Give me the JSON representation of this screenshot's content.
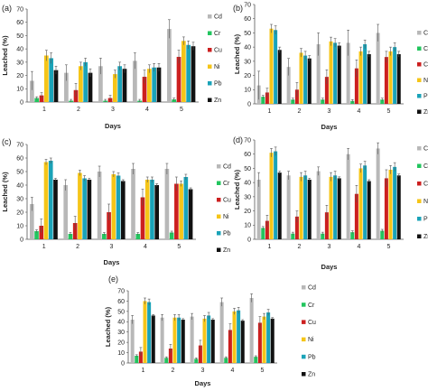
{
  "chart_data": [
    {
      "panel": "(a)",
      "type": "bar",
      "categories": [
        "1",
        "2",
        "3",
        "4",
        "5"
      ],
      "xlabel": "Days",
      "ylabel": "Leached (%)",
      "ylim": [
        0,
        70
      ],
      "yticks": [
        0,
        10,
        20,
        30,
        40,
        50,
        60,
        70
      ],
      "legend_position": "right",
      "series": [
        {
          "name": "Cd",
          "color": "#b8b8b8",
          "values": [
            16,
            22,
            27,
            31,
            55
          ],
          "errors": [
            7,
            6,
            6,
            6,
            7
          ]
        },
        {
          "name": "Cr",
          "color": "#22c55e",
          "values": [
            3,
            1,
            1,
            1,
            2
          ],
          "errors": [
            1,
            1,
            1,
            1,
            1
          ]
        },
        {
          "name": "Cu",
          "color": "#cc1f1f",
          "values": [
            5,
            9,
            3,
            19,
            34
          ],
          "errors": [
            2,
            5,
            2,
            5,
            5
          ]
        },
        {
          "name": "Ni",
          "color": "#f5c518",
          "values": [
            35,
            27,
            21,
            25,
            46
          ],
          "errors": [
            4,
            3,
            3,
            3,
            3
          ]
        },
        {
          "name": "Pb",
          "color": "#1aa3b8",
          "values": [
            33,
            30,
            27,
            26,
            43
          ],
          "errors": [
            4,
            3,
            3,
            3,
            3
          ]
        },
        {
          "name": "Zn",
          "color": "#111111",
          "values": [
            24,
            22,
            25,
            26,
            42
          ],
          "errors": [
            3,
            3,
            3,
            3,
            3
          ]
        }
      ]
    },
    {
      "panel": "(b)",
      "type": "bar",
      "categories": [
        "1",
        "2",
        "3",
        "4",
        "5"
      ],
      "xlabel": "Days",
      "ylabel": "Leached (%)",
      "ylim": [
        0,
        70
      ],
      "yticks": [
        0,
        10,
        20,
        30,
        40,
        50,
        60,
        70
      ],
      "legend_position": "right",
      "series": [
        {
          "name": "Cd",
          "color": "#b8b8b8",
          "values": [
            13,
            26,
            42,
            43,
            50
          ],
          "errors": [
            10,
            6,
            8,
            9,
            6
          ]
        },
        {
          "name": "Cr",
          "color": "#22c55e",
          "values": [
            5,
            3,
            3,
            2,
            3
          ],
          "errors": [
            1,
            1,
            1,
            1,
            1
          ]
        },
        {
          "name": "Cu",
          "color": "#cc1f1f",
          "values": [
            8,
            10,
            19,
            25,
            33
          ],
          "errors": [
            3,
            5,
            5,
            6,
            4
          ]
        },
        {
          "name": "Ni",
          "color": "#f5c518",
          "values": [
            53,
            36,
            44,
            37,
            37
          ],
          "errors": [
            3,
            3,
            3,
            3,
            3
          ]
        },
        {
          "name": "Pb",
          "color": "#1aa3b8",
          "values": [
            52,
            34,
            43,
            42,
            40
          ],
          "errors": [
            3,
            3,
            3,
            3,
            3
          ]
        },
        {
          "name": "Zn",
          "color": "#111111",
          "values": [
            38,
            32,
            41,
            35,
            35
          ],
          "errors": [
            2,
            2,
            2,
            2,
            2
          ]
        }
      ]
    },
    {
      "panel": "(c)",
      "type": "bar",
      "categories": [
        "1",
        "2",
        "3",
        "4",
        "5"
      ],
      "xlabel": "Days",
      "ylabel": "Leached (%)",
      "ylim": [
        0,
        70
      ],
      "yticks": [
        0,
        10,
        20,
        30,
        40,
        50,
        60,
        70
      ],
      "legend_position": "right",
      "series": [
        {
          "name": "Cd",
          "color": "#b8b8b8",
          "values": [
            26,
            40,
            50,
            52,
            52
          ],
          "errors": [
            5,
            4,
            4,
            4,
            4
          ]
        },
        {
          "name": "Cr",
          "color": "#22c55e",
          "values": [
            6,
            4,
            4,
            4,
            5
          ],
          "errors": [
            1,
            1,
            1,
            1,
            1
          ]
        },
        {
          "name": "Cu",
          "color": "#cc1f1f",
          "values": [
            10,
            12,
            20,
            31,
            41
          ],
          "errors": [
            5,
            5,
            6,
            6,
            5
          ]
        },
        {
          "name": "Ni",
          "color": "#f5c518",
          "values": [
            57,
            49,
            48,
            44,
            41
          ],
          "errors": [
            2,
            2,
            2,
            2,
            2
          ]
        },
        {
          "name": "Pb",
          "color": "#1aa3b8",
          "values": [
            58,
            45,
            47,
            44,
            46
          ],
          "errors": [
            2,
            2,
            2,
            2,
            2
          ]
        },
        {
          "name": "Zn",
          "color": "#111111",
          "values": [
            44,
            44,
            43,
            40,
            37
          ],
          "errors": [
            1,
            1,
            1,
            1,
            1
          ]
        }
      ]
    },
    {
      "panel": "(d)",
      "type": "bar",
      "categories": [
        "1",
        "2",
        "3",
        "4",
        "5"
      ],
      "xlabel": "Days",
      "ylabel": "Leached (%)",
      "ylim": [
        0,
        70
      ],
      "yticks": [
        0,
        10,
        20,
        30,
        40,
        50,
        60,
        70
      ],
      "legend_position": "right",
      "series": [
        {
          "name": "Cd",
          "color": "#b8b8b8",
          "values": [
            42,
            45,
            48,
            60,
            64
          ],
          "errors": [
            5,
            3,
            3,
            4,
            4
          ]
        },
        {
          "name": "Cr",
          "color": "#22c55e",
          "values": [
            8,
            4,
            4,
            5,
            6
          ],
          "errors": [
            1,
            1,
            1,
            1,
            1
          ]
        },
        {
          "name": "Cu",
          "color": "#cc1f1f",
          "values": [
            13,
            16,
            19,
            32,
            43
          ],
          "errors": [
            4,
            4,
            5,
            6,
            6
          ]
        },
        {
          "name": "Ni",
          "color": "#f5c518",
          "values": [
            61,
            44,
            44,
            50,
            49
          ],
          "errors": [
            3,
            3,
            3,
            3,
            3
          ]
        },
        {
          "name": "Pb",
          "color": "#1aa3b8",
          "values": [
            62,
            45,
            45,
            52,
            51
          ],
          "errors": [
            3,
            3,
            3,
            3,
            3
          ]
        },
        {
          "name": "Zn",
          "color": "#111111",
          "values": [
            47,
            42,
            43,
            41,
            45
          ],
          "errors": [
            1,
            1,
            1,
            1,
            1
          ]
        }
      ]
    },
    {
      "panel": "(e)",
      "type": "bar",
      "categories": [
        "1",
        "2",
        "3",
        "4",
        "5"
      ],
      "xlabel": "Days",
      "ylabel": "Leached (%)",
      "ylim": [
        0,
        70
      ],
      "yticks": [
        0,
        10,
        20,
        30,
        40,
        50,
        60,
        70
      ],
      "legend_position": "right",
      "series": [
        {
          "name": "Cd",
          "color": "#b8b8b8",
          "values": [
            42,
            44,
            45,
            59,
            63
          ],
          "errors": [
            4,
            3,
            3,
            4,
            4
          ]
        },
        {
          "name": "Cr",
          "color": "#22c55e",
          "values": [
            7,
            5,
            4,
            5,
            6
          ],
          "errors": [
            1,
            1,
            1,
            1,
            1
          ]
        },
        {
          "name": "Cu",
          "color": "#cc1f1f",
          "values": [
            11,
            14,
            17,
            32,
            39
          ],
          "errors": [
            4,
            4,
            5,
            6,
            6
          ]
        },
        {
          "name": "Ni",
          "color": "#f5c518",
          "values": [
            60,
            44,
            43,
            50,
            45
          ],
          "errors": [
            3,
            3,
            3,
            3,
            3
          ]
        },
        {
          "name": "Pb",
          "color": "#1aa3b8",
          "values": [
            59,
            44,
            46,
            51,
            49
          ],
          "errors": [
            3,
            3,
            3,
            3,
            3
          ]
        },
        {
          "name": "Zn",
          "color": "#111111",
          "values": [
            46,
            42,
            42,
            41,
            43
          ],
          "errors": [
            1,
            1,
            1,
            1,
            1
          ]
        }
      ]
    }
  ]
}
